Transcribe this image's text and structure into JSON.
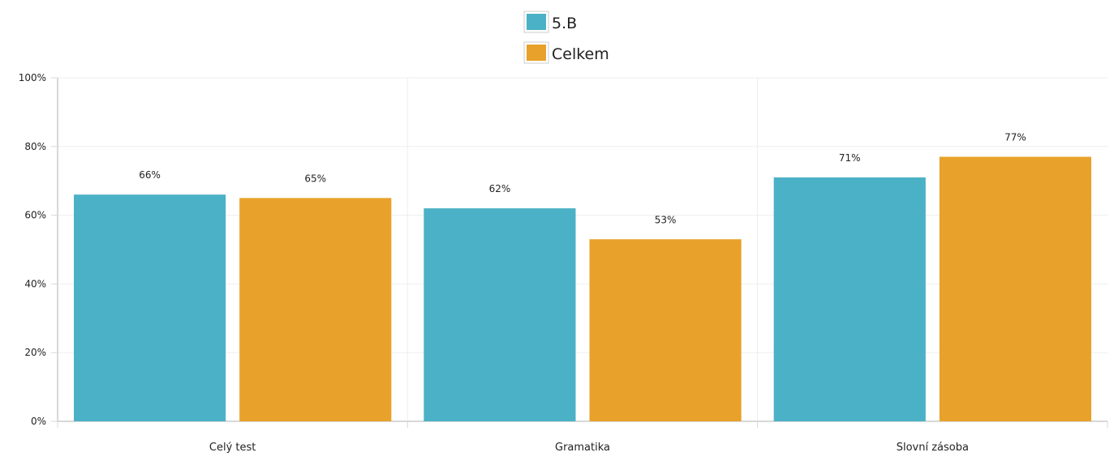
{
  "chart_data": {
    "type": "bar",
    "categories": [
      "Celý test",
      "Gramatika",
      "Slovní zásoba"
    ],
    "series": [
      {
        "name": "5.B",
        "values": [
          66,
          62,
          71
        ],
        "color": "#4bb1c6"
      },
      {
        "name": "Celkem",
        "values": [
          65,
          53,
          77
        ],
        "color": "#e8a12a"
      }
    ],
    "value_labels": [
      [
        "66%",
        "62%",
        "71%"
      ],
      [
        "65%",
        "53%",
        "77%"
      ]
    ],
    "y_ticks": [
      {
        "value": 0,
        "label": "0%"
      },
      {
        "value": 20,
        "label": "20%"
      },
      {
        "value": 40,
        "label": "40%"
      },
      {
        "value": 60,
        "label": "60%"
      },
      {
        "value": 80,
        "label": "80%"
      },
      {
        "value": 100,
        "label": "100%"
      }
    ],
    "ylim": [
      0,
      100
    ],
    "grid": true,
    "legend_position": "top-center",
    "title": "",
    "xlabel": "",
    "ylabel": ""
  }
}
